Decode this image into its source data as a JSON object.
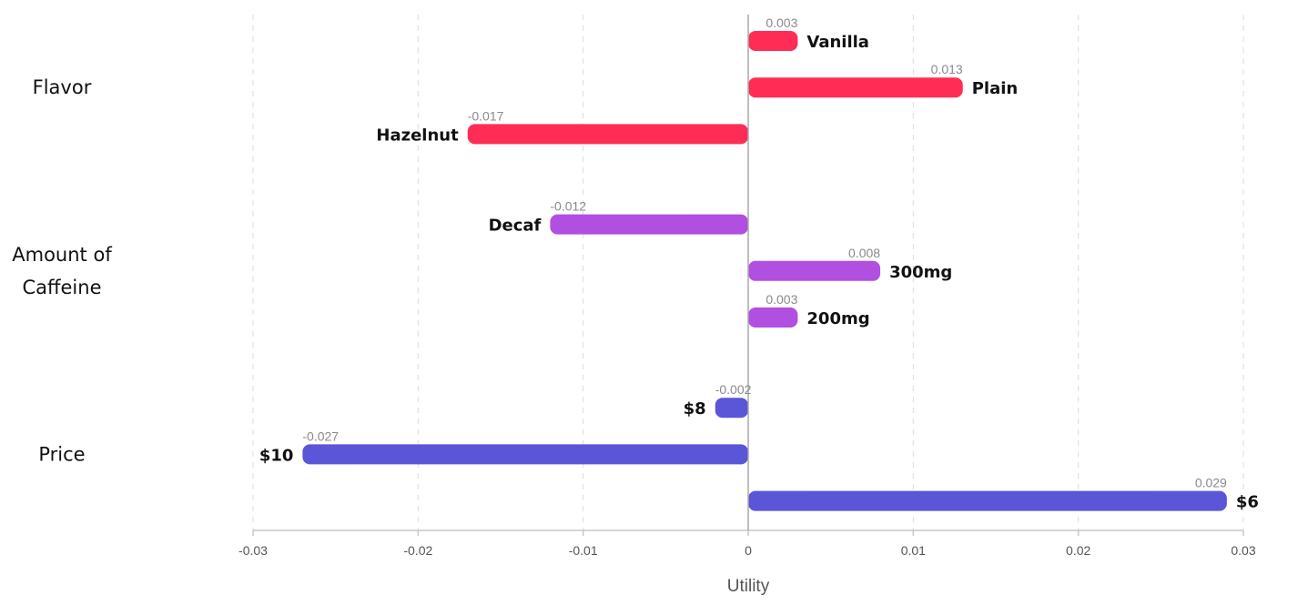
{
  "chart_data": {
    "type": "bar",
    "orientation": "horizontal",
    "xlabel": "Utility",
    "xlim": [
      -0.03,
      0.03
    ],
    "xticks": [
      -0.03,
      -0.02,
      -0.01,
      0,
      0.01,
      0.02,
      0.03
    ],
    "xtick_labels": [
      "-0.03",
      "-0.02",
      "-0.01",
      "0",
      "0.01",
      "0.02",
      "0.03"
    ],
    "grid": true,
    "groups": [
      {
        "name_lines": [
          "Flavor"
        ],
        "color": "#ff2d55",
        "levels": [
          {
            "label": "Vanilla",
            "value": 0.003,
            "value_label": "0.003"
          },
          {
            "label": "Plain",
            "value": 0.013,
            "value_label": "0.013"
          },
          {
            "label": "Hazelnut",
            "value": -0.017,
            "value_label": "-0.017"
          }
        ]
      },
      {
        "name_lines": [
          "Amount of",
          "Caffeine"
        ],
        "color": "#b04fe0",
        "levels": [
          {
            "label": "Decaf",
            "value": -0.012,
            "value_label": "-0.012"
          },
          {
            "label": "300mg",
            "value": 0.008,
            "value_label": "0.008"
          },
          {
            "label": "200mg",
            "value": 0.003,
            "value_label": "0.003"
          }
        ]
      },
      {
        "name_lines": [
          "Price"
        ],
        "color": "#5b55d8",
        "levels": [
          {
            "label": "$8",
            "value": -0.002,
            "value_label": "-0.002"
          },
          {
            "label": "$10",
            "value": -0.027,
            "value_label": "-0.027"
          },
          {
            "label": "$6",
            "value": 0.029,
            "value_label": "0.029"
          }
        ]
      }
    ]
  }
}
